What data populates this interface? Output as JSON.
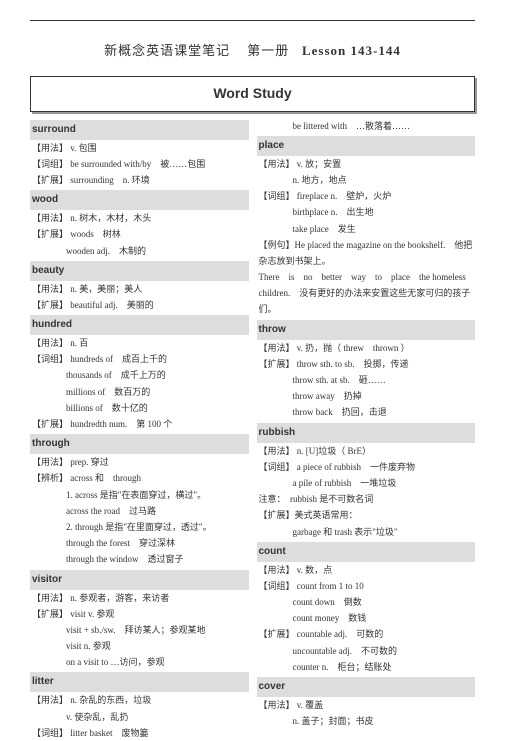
{
  "header": {
    "chinese": "新概念英语课堂笔记",
    "part": "第一册",
    "lesson": "Lesson 143-144"
  },
  "section_title": "Word Study",
  "left": {
    "surround": {
      "title": "surround",
      "l1": "【用法】 v. 包围",
      "l2": "【词组】 be surrounded with/by　被……包围",
      "l3": "【扩展】 surrounding　n. 环境"
    },
    "wood": {
      "title": "wood",
      "l1": "【用法】 n. 树木，木材，木头",
      "l2": "【扩展】 woods　树林",
      "l3": "wooden adj.　木制的"
    },
    "beauty": {
      "title": "beauty",
      "l1": "【用法】 n. 美，美丽；美人",
      "l2": "【扩展】 beautiful adj.　美丽的"
    },
    "hundred": {
      "title": "hundred",
      "l1": "【用法】 n. 百",
      "l2": "【词组】 hundreds of　成百上千的",
      "l3": "thousands of　成千上万的",
      "l4": "millions of　数百万的",
      "l5": "billions of　数十亿的",
      "l6": "【扩展】 hundredth num.　第 100 个"
    },
    "through": {
      "title": "through",
      "l1": "【用法】 prep. 穿过",
      "l2": "【辨析】 across 和　through",
      "l3": "1. across 是指\"在表面穿过，横过\"。",
      "l4": "across the road　过马路",
      "l5": "2. through 是指\"在里面穿过，透过\"。",
      "l6": "through the forest　穿过深林",
      "l7": "through the window　透过窗子"
    },
    "visitor": {
      "title": "visitor",
      "l1": "【用法】 n. 参观者，游客，来访者",
      "l2": "【扩展】 visit v. 参观",
      "l3": "visit + sb./sw.　拜访某人；参观某地",
      "l4": "visit n. 参观",
      "l5": "on a visit to …访问，参观"
    },
    "litter": {
      "title": "litter",
      "l1": "【用法】 n. 杂乱的东西，垃圾",
      "l2": "v. 使杂乱，乱扔",
      "l3": "【词组】 litter basket　废物篓"
    }
  },
  "right": {
    "top": "be littered with　…散落着……",
    "place": {
      "title": "place",
      "l1": "【用法】 v. 放；安置",
      "l2": "n. 地方，地点",
      "l3": "【词组】 fireplace n.　壁炉，火炉",
      "l4": "birthplace n.　出生地",
      "l5": "take place　发生",
      "l6": "【例句】He placed the magazine on the bookshelf.　他把杂志放到书架上。",
      "l7": "There　is　no　better　way　to　place　the homeless children.　没有更好的办法来安置这些无家可归的孩子们。"
    },
    "throw": {
      "title": "throw",
      "l1": "【用法】 v. 扔，抛（ threw　thrown ）",
      "l2": "【扩展】 throw sth. to sb.　投掷，传递",
      "l3": "throw sth. at sb.　砸……",
      "l4": "throw away　扔掉",
      "l5": "throw back　扔回，击退"
    },
    "rubbish": {
      "title": "rubbish",
      "l1": "【用法】 n. [U]垃圾（ BrE）",
      "l2": "【词组】 a piece of rubbish　一件废弃物",
      "l3": "a pile of rubbish　一堆垃圾",
      "l4": "注意：　rubbish 是不可数名词",
      "l5": "【扩展】美式英语常用：",
      "l6": "garbage 和 trash 表示\"垃圾\""
    },
    "count": {
      "title": "count",
      "l1": "【用法】 v. 数，点",
      "l2": "【词组】 count from 1 to 10",
      "l3": "count down　倒数",
      "l4": "count money　数钱",
      "l5": "【扩展】 countable adj.　可数的",
      "l6": "uncountable adj.　不可数的",
      "l7": "counter n.　柜台；结账处"
    },
    "cover": {
      "title": "cover",
      "l1": "【用法】 v. 覆盖",
      "l2": "n. 盖子；封面；书皮"
    }
  }
}
